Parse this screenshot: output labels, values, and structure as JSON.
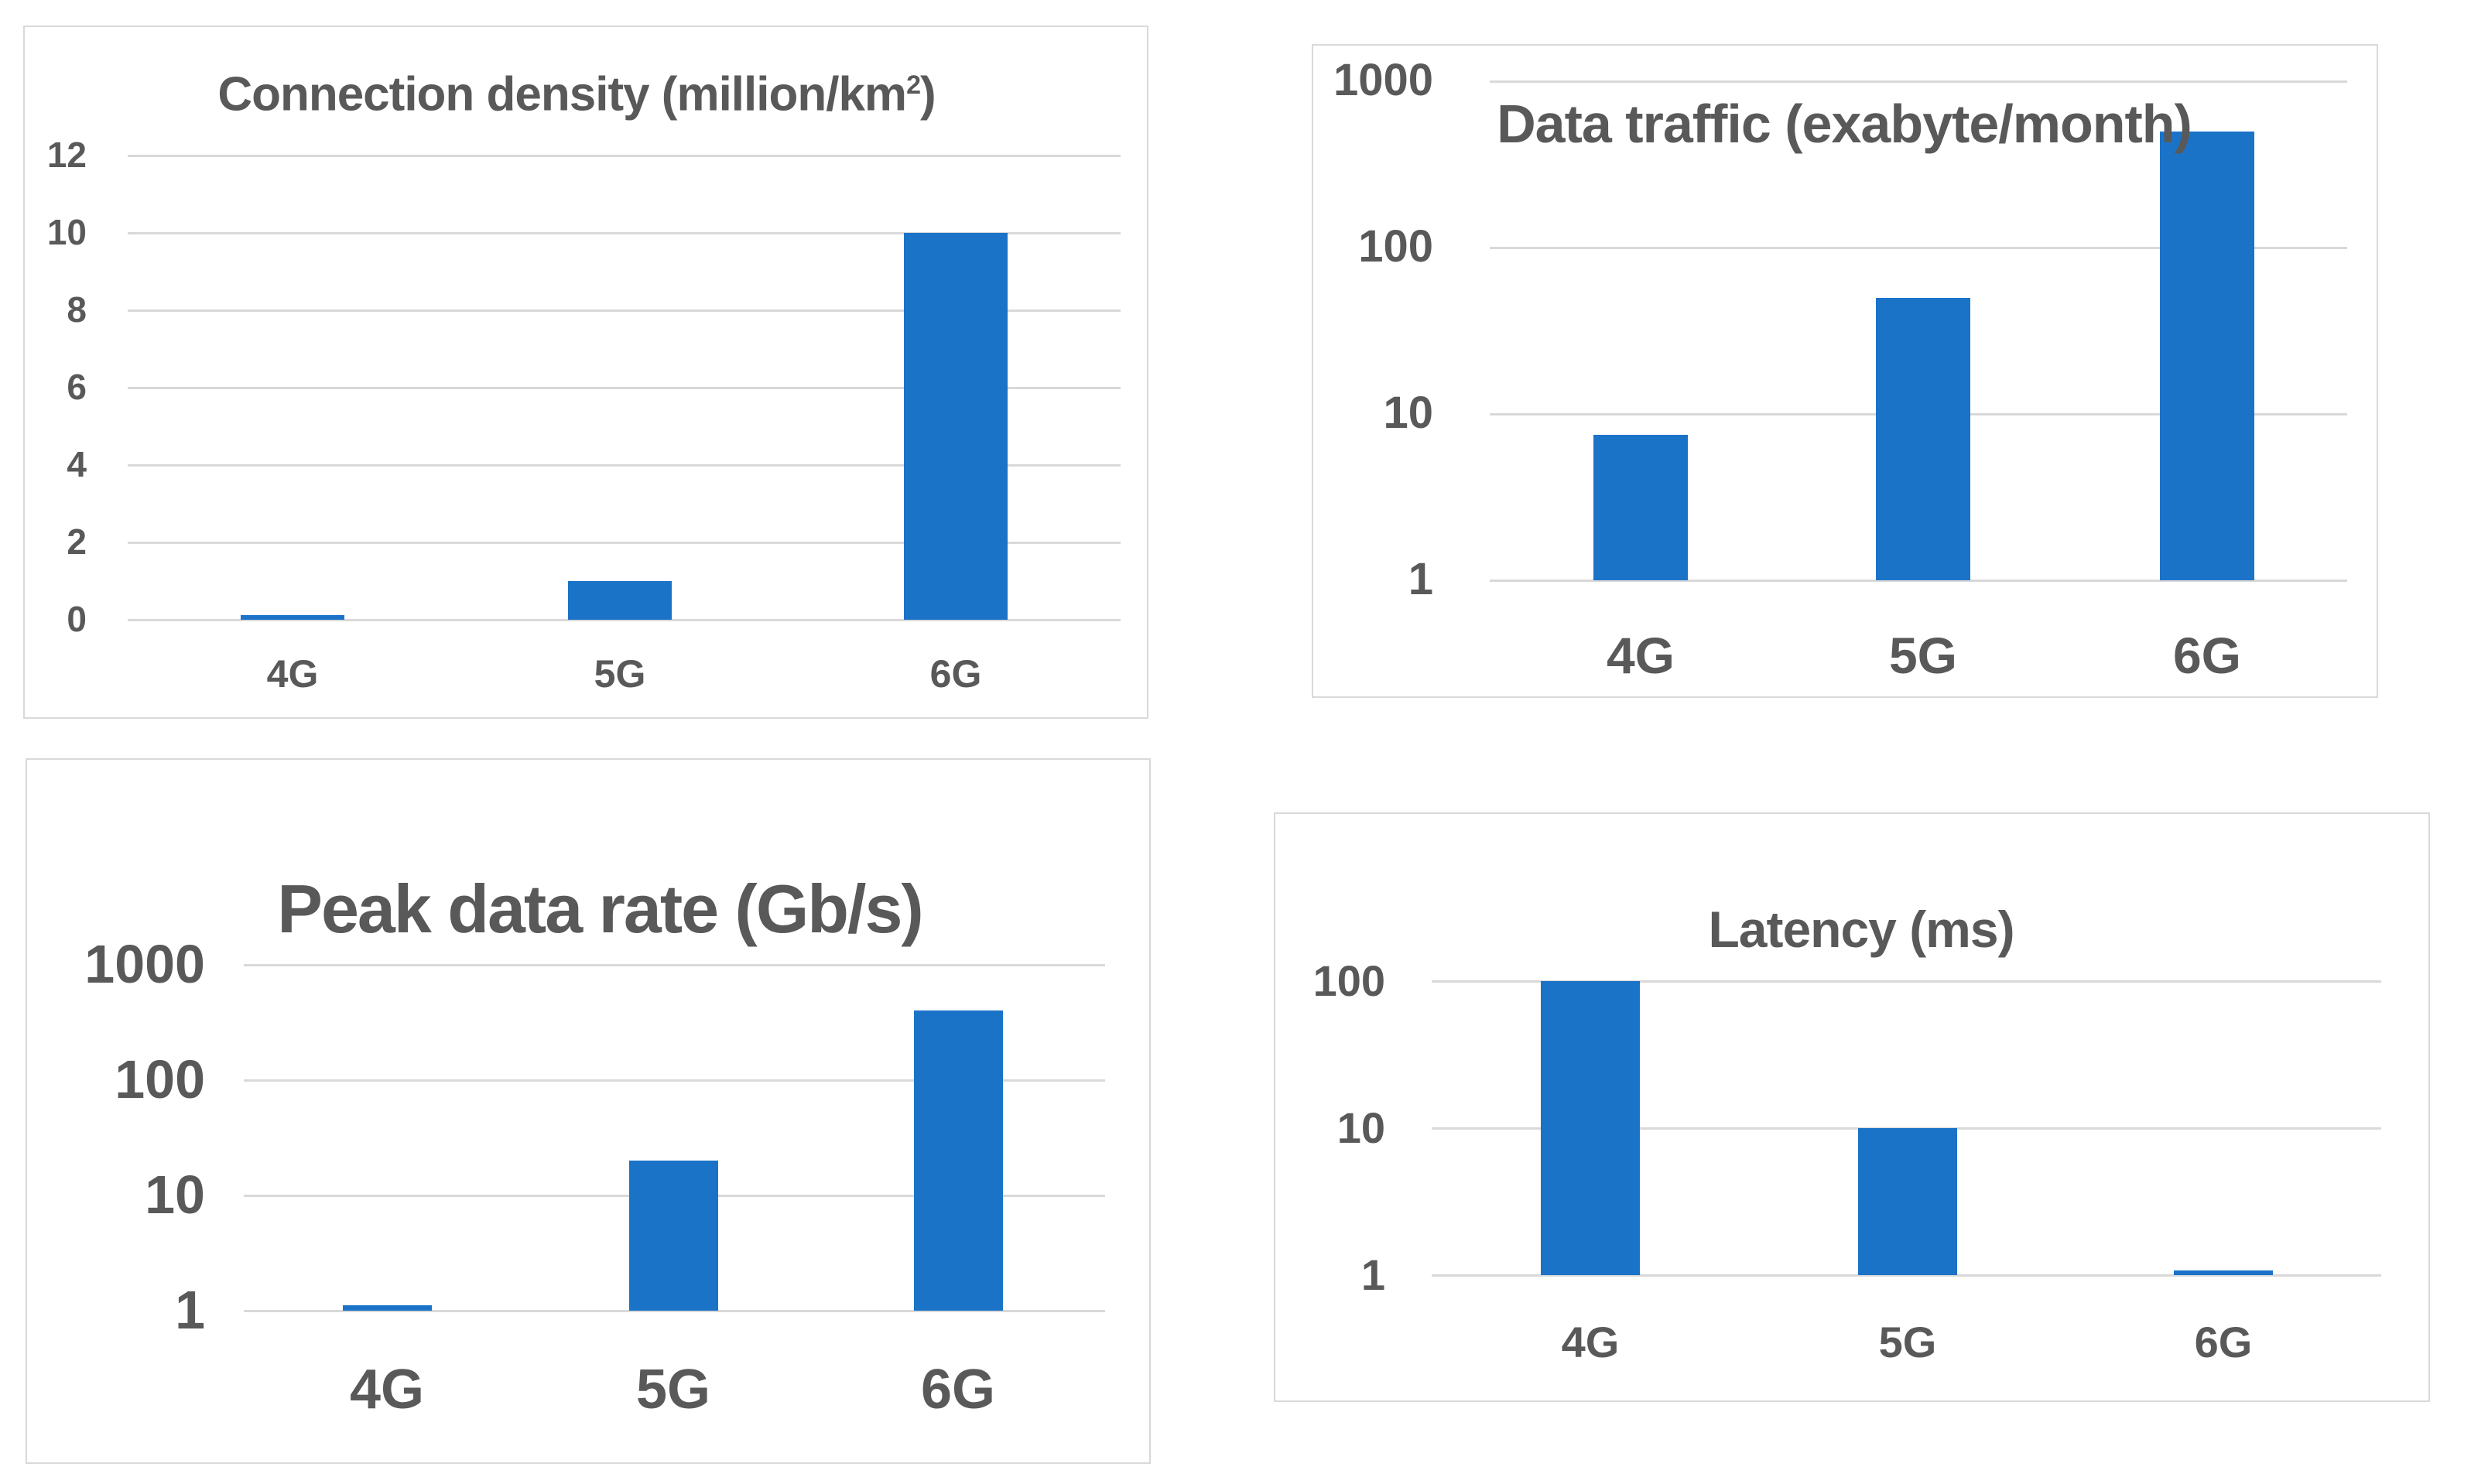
{
  "colors": {
    "bar": "#1b73c8",
    "text": "#595959",
    "gridline": "#d9d9d9",
    "panel_border": "#d9d9d9",
    "background": "#ffffff"
  },
  "chart_data": [
    {
      "type": "bar",
      "title": "Connection density (million/km2)",
      "title_parts": {
        "pre": "Connection density (million/km",
        "sup": "2",
        "post": ")"
      },
      "categories": [
        "4G",
        "5G",
        "6G"
      ],
      "values": [
        0.1,
        1,
        10
      ],
      "yscale": "linear",
      "yticks": [
        12,
        10,
        8,
        6,
        4,
        2,
        0
      ],
      "ylim": [
        0,
        12
      ],
      "grid": true,
      "legend": "none",
      "bar_color": "#1b73c8"
    },
    {
      "type": "bar",
      "title": "Data traffic (exabyte/month)",
      "categories": [
        "4G",
        "5G",
        "6G"
      ],
      "values": [
        7.5,
        50,
        500
      ],
      "yscale": "log",
      "yticks": [
        1000,
        100,
        10,
        1
      ],
      "ylim": [
        1,
        1000
      ],
      "grid": true,
      "legend": "none",
      "bar_color": "#1b73c8"
    },
    {
      "type": "bar",
      "title": "Peak data rate (Gb/s)",
      "categories": [
        "4G",
        "5G",
        "6G"
      ],
      "values": [
        1,
        20,
        400
      ],
      "yscale": "log",
      "yticks": [
        1000,
        100,
        10,
        1
      ],
      "ylim": [
        1,
        1000
      ],
      "grid": true,
      "legend": "none",
      "bar_color": "#1b73c8"
    },
    {
      "type": "bar",
      "title": "Latency (ms)",
      "categories": [
        "4G",
        "5G",
        "6G"
      ],
      "values": [
        100,
        10,
        1
      ],
      "yscale": "log",
      "yticks": [
        100,
        10,
        1
      ],
      "ylim": [
        1,
        100
      ],
      "grid": true,
      "legend": "none",
      "bar_color": "#1b73c8"
    }
  ]
}
